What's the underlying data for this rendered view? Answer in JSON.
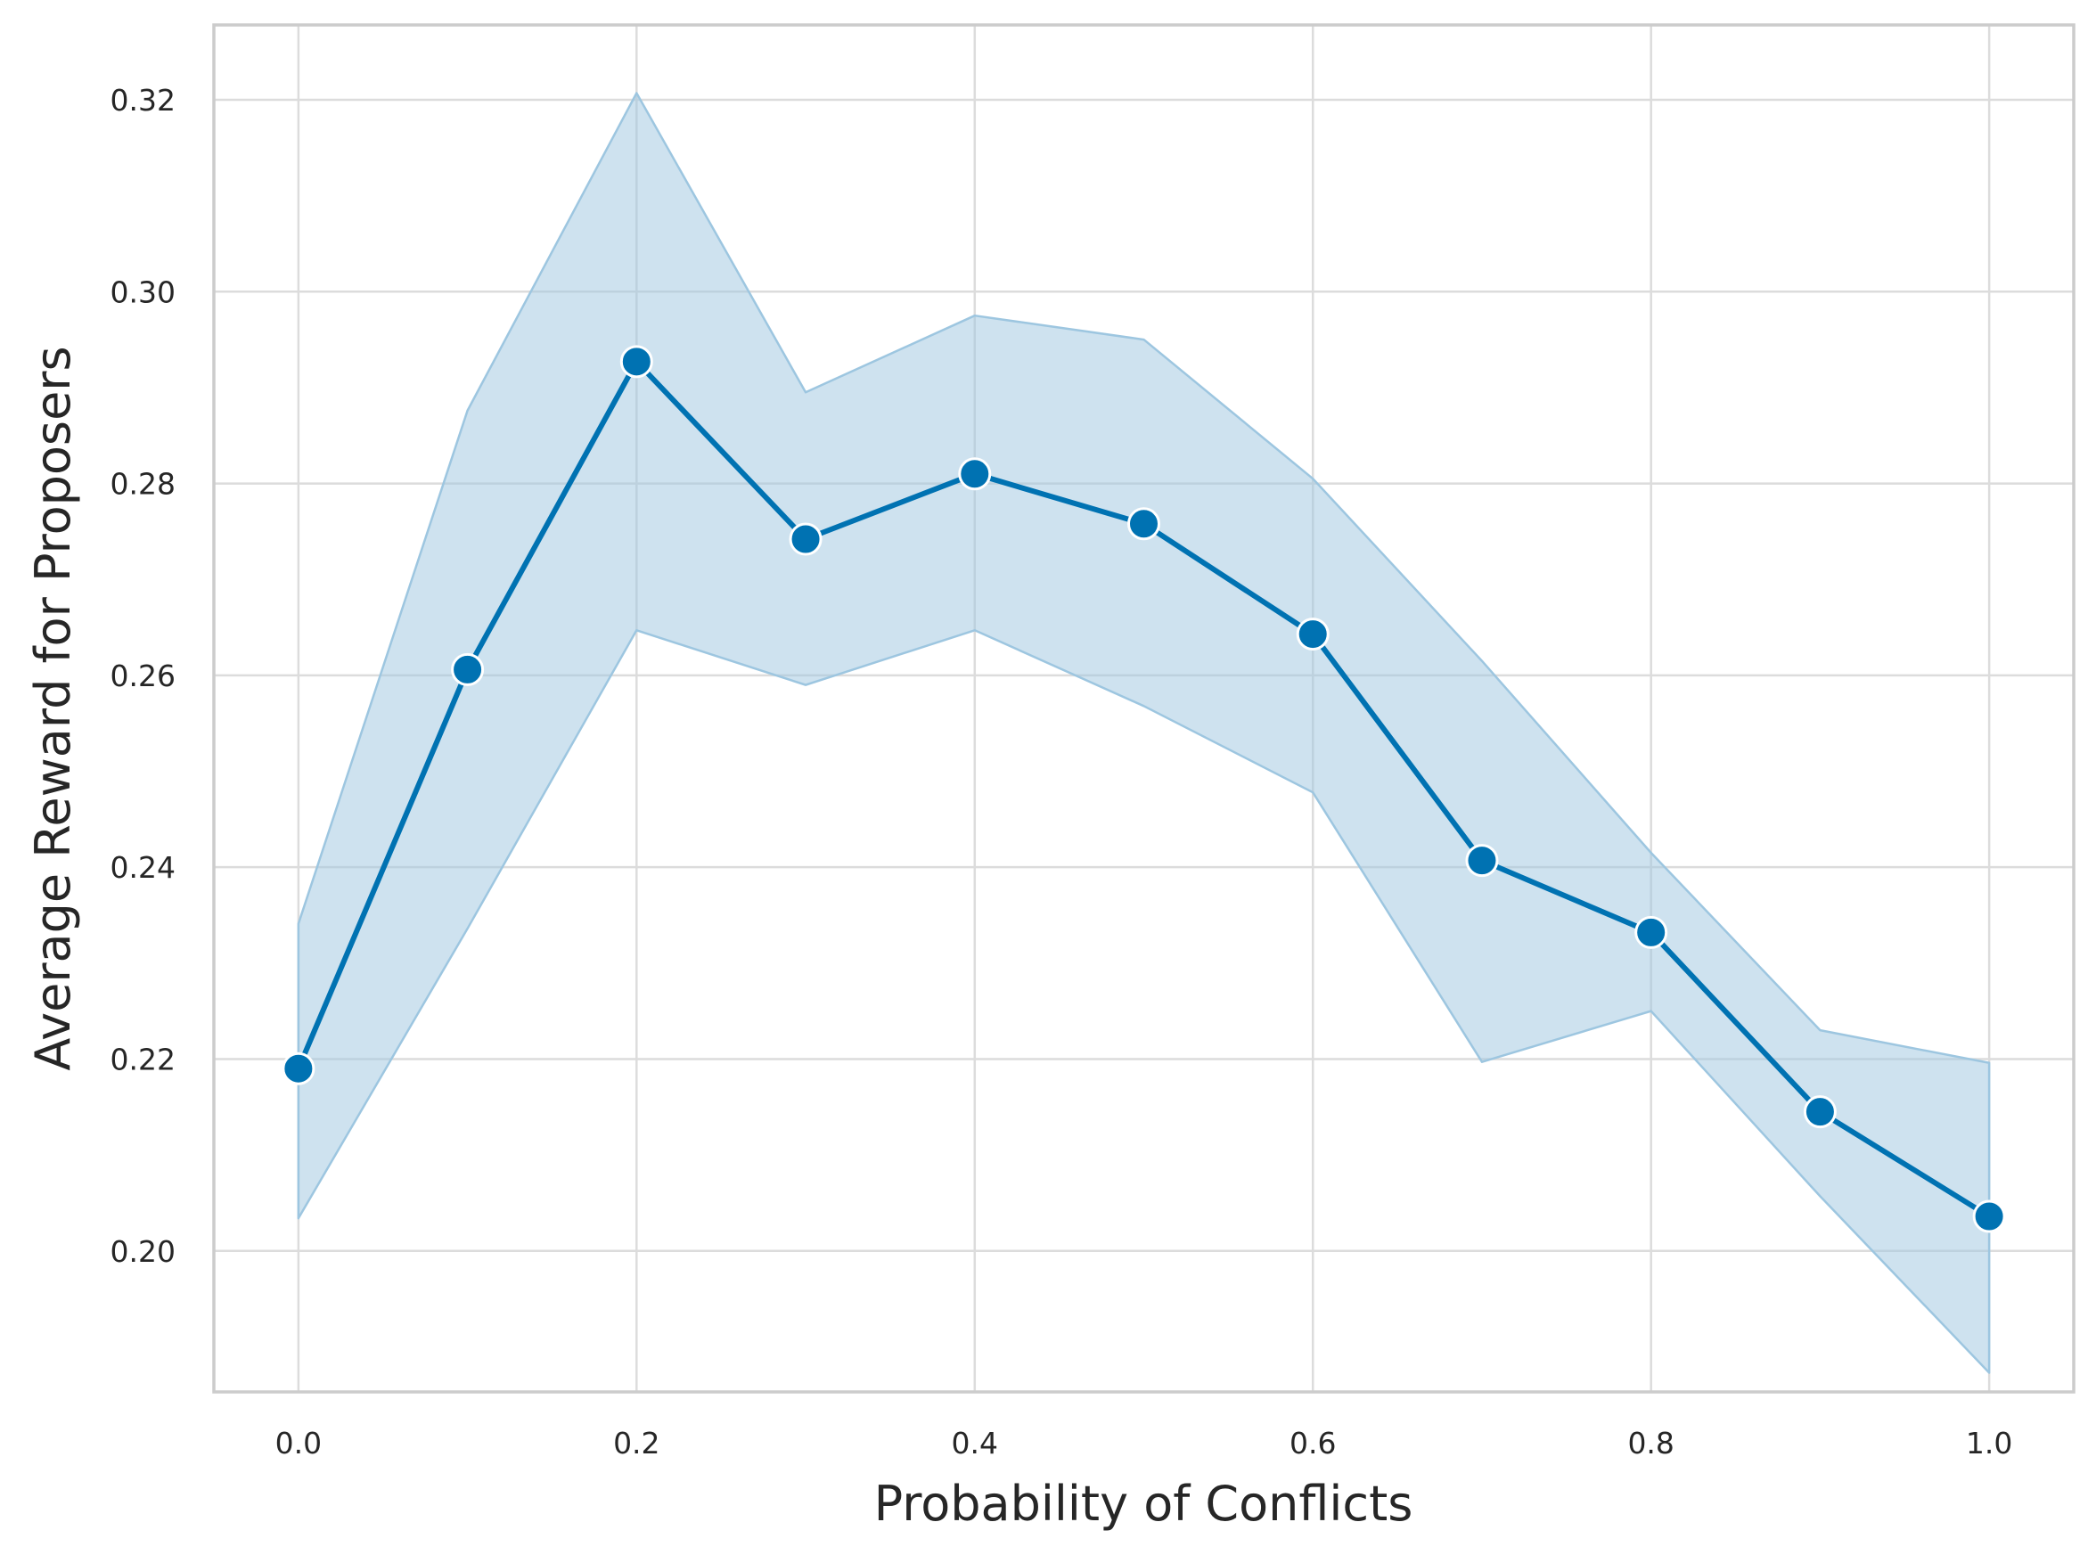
{
  "chart_data": {
    "type": "line",
    "xlabel": "Probability of Conflicts",
    "ylabel": "Average Reward for Proposers",
    "xlim": [
      -0.05,
      1.05
    ],
    "ylim": [
      0.1853,
      0.3278
    ],
    "x_ticks": [
      0.0,
      0.2,
      0.4,
      0.6,
      0.8,
      1.0
    ],
    "x_tick_labels": [
      "0.0",
      "0.2",
      "0.4",
      "0.6",
      "0.8",
      "1.0"
    ],
    "y_ticks": [
      0.2,
      0.22,
      0.24,
      0.26,
      0.28,
      0.3,
      0.32
    ],
    "y_tick_labels": [
      "0.20",
      "0.22",
      "0.24",
      "0.26",
      "0.28",
      "0.30",
      "0.32"
    ],
    "grid": true,
    "series": [
      {
        "color": "#0072b2",
        "band_color": "#9dc6e0",
        "x": [
          0.0,
          0.1,
          0.2,
          0.3,
          0.4,
          0.5,
          0.6,
          0.7,
          0.8,
          0.9,
          1.0
        ],
        "y": [
          0.219,
          0.2606,
          0.2927,
          0.2742,
          0.281,
          0.2758,
          0.2643,
          0.2407,
          0.2332,
          0.2145,
          0.2036
        ],
        "ci_upper": [
          0.2341,
          0.2876,
          0.3207,
          0.2895,
          0.2975,
          0.295,
          0.2805,
          0.2615,
          0.2415,
          0.223,
          0.2196
        ],
        "ci_lower": [
          0.2034,
          0.2336,
          0.2647,
          0.259,
          0.2647,
          0.2568,
          0.2478,
          0.2197,
          0.225,
          0.2057,
          0.1873
        ]
      }
    ]
  }
}
